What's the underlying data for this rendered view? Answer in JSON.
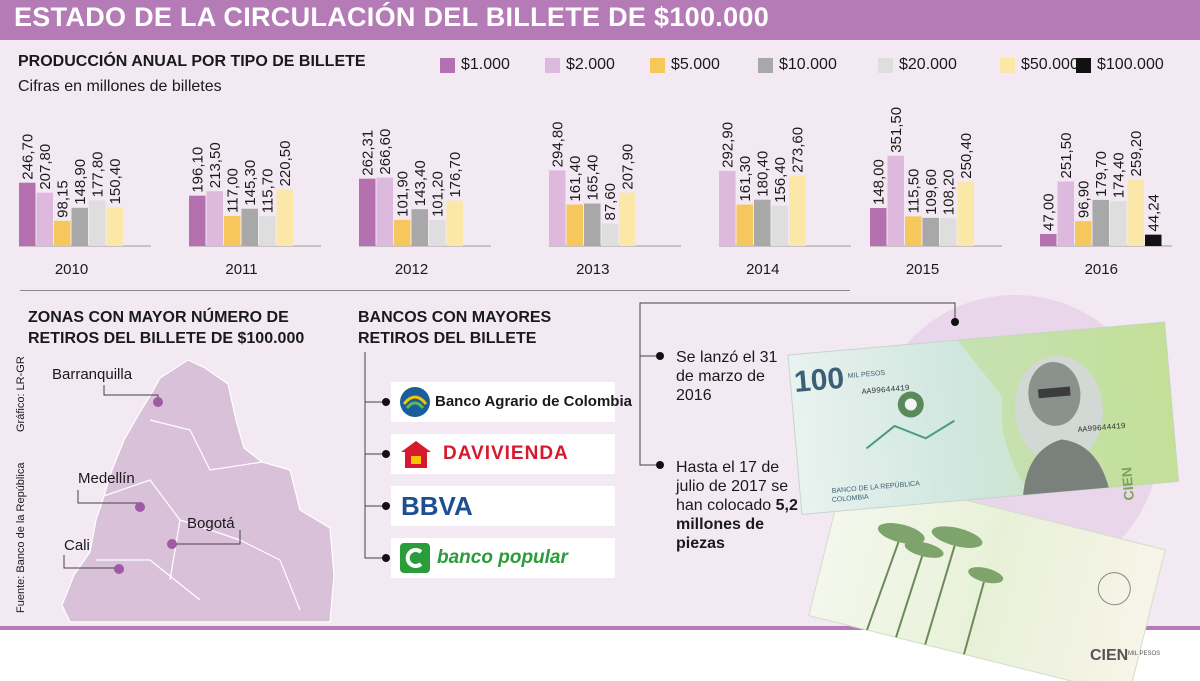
{
  "header": {
    "title": "ESTADO DE LA CIRCULACIÓN DEL BILLETE DE $100.000"
  },
  "chart": {
    "title": "PRODUCCIÓN ANUAL POR TIPO DE BILLETE",
    "subtitle": "Cifras en millones de billetes"
  },
  "chart_data": {
    "type": "bar",
    "title": "PRODUCCIÓN ANUAL POR TIPO DE BILLETE",
    "subtitle": "Cifras en millones de billetes",
    "categories": [
      "2010",
      "2011",
      "2012",
      "2013",
      "2014",
      "2015",
      "2016"
    ],
    "legend_position": "top-right",
    "grid": false,
    "ylim": [
      0,
      360
    ],
    "series": [
      {
        "name": "$1.000",
        "color": "#b570b0",
        "values": [
          246.7,
          196.1,
          262.31,
          null,
          null,
          148.0,
          47.0
        ],
        "labels": [
          "246,70",
          "196,10",
          "262,31",
          null,
          null,
          "148,00",
          "47,00"
        ]
      },
      {
        "name": "$2.000",
        "color": "#dcb9dd",
        "values": [
          207.8,
          213.5,
          266.6,
          294.8,
          292.9,
          351.5,
          251.5
        ],
        "labels": [
          "207,80",
          "213,50",
          "266,60",
          "294,80",
          "292,90",
          "351,50",
          "251,50"
        ]
      },
      {
        "name": "$5.000",
        "color": "#f5c75d",
        "values": [
          98.15,
          117.0,
          101.9,
          161.4,
          161.3,
          115.5,
          96.9
        ],
        "labels": [
          "98,15",
          "117,00",
          "101,90",
          "161,40",
          "161,30",
          "115,50",
          "96,90"
        ]
      },
      {
        "name": "$10.000",
        "color": "#a8a8a8",
        "values": [
          148.9,
          145.3,
          143.4,
          165.4,
          180.4,
          109.6,
          179.7
        ],
        "labels": [
          "148,90",
          "145,30",
          "143,40",
          "165,40",
          "180,40",
          "109,60",
          "179,70"
        ]
      },
      {
        "name": "$20.000",
        "color": "#dedede",
        "values": [
          177.8,
          115.7,
          101.2,
          87.6,
          156.4,
          108.2,
          174.4
        ],
        "labels": [
          "177,80",
          "115,70",
          "101,20",
          "87,60",
          "156,40",
          "108,20",
          "174,40"
        ]
      },
      {
        "name": "$50.000",
        "color": "#fbe7a8",
        "values": [
          150.4,
          220.5,
          176.7,
          207.9,
          273.6,
          250.4,
          259.2
        ],
        "labels": [
          "150,40",
          "220,50",
          "176,70",
          "207,90",
          "273,60",
          "250,40",
          "259,20"
        ]
      },
      {
        "name": "$100.000",
        "color": "#111111",
        "values": [
          null,
          null,
          null,
          null,
          null,
          null,
          44.24
        ],
        "labels": [
          null,
          null,
          null,
          null,
          null,
          null,
          "44,24"
        ]
      }
    ]
  },
  "zones": {
    "title_line1": "ZONAS CON MAYOR NÚMERO DE",
    "title_line2": "RETIROS DEL BILLETE DE $100.000",
    "cities": [
      "Barranquilla",
      "Medellín",
      "Bogotá",
      "Cali"
    ]
  },
  "banks": {
    "title_line1": "BANCOS CON MAYORES",
    "title_line2": "RETIROS DEL BILLETE",
    "items": [
      "Banco Agrario de Colombia",
      "DAVIVIENDA",
      "BBVA",
      "banco popular"
    ]
  },
  "facts": {
    "fact1": "Se lanzó el 31 de marzo de 2016",
    "fact2_prefix": "Hasta el 17 de julio de 2017 se han colocado",
    "fact2_bold": "5,2 millones de piezas"
  },
  "credits": {
    "graphic": "Gráfico: LR-GR",
    "source": "Fuente: Banco de la República"
  },
  "banknote": {
    "front_value": "100",
    "front_small": "MIL PESOS",
    "serial": "AA99644419",
    "word": "CIEN",
    "word_small": "MIL PESOS",
    "bank_text": "BANCO DE LA REPÚBLICA",
    "country": "COLOMBIA"
  },
  "colors": {
    "header": "#b57bb6",
    "panel": "#f3e9f3",
    "davivienda": "#d7192d",
    "bbva": "#1d4f91",
    "popular": "#2a9d3a",
    "agrario": "#1a5e99"
  }
}
